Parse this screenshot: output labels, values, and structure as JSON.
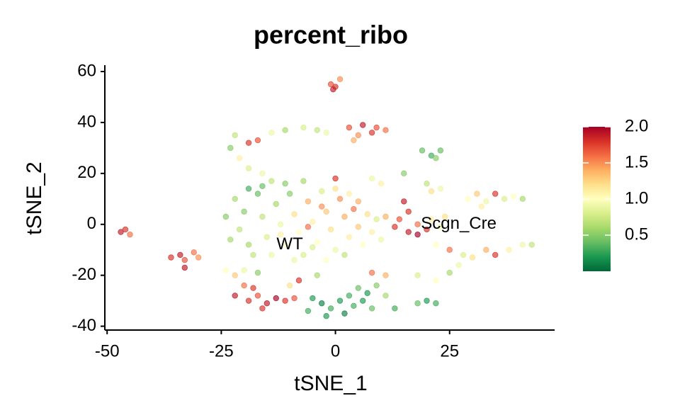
{
  "chart_data": {
    "type": "scatter",
    "title": "percent_ribo",
    "x_label": "tSNE_1",
    "y_label": "tSNE_2",
    "xlim": [
      -50.5,
      48
    ],
    "ylim": [
      -41.5,
      62.5
    ],
    "xticks": [
      -50,
      -25,
      0,
      25
    ],
    "yticks": [
      -40,
      -20,
      0,
      20,
      40,
      60
    ],
    "grid": false,
    "colormap": [
      "#006837",
      "#1a9850",
      "#66bd63",
      "#a6d96a",
      "#d9ef8b",
      "#ffffbf",
      "#fee08b",
      "#fdae61",
      "#f46d43",
      "#d73027",
      "#a50026"
    ],
    "clim": [
      0,
      2
    ],
    "cticks": [
      0.5,
      {
        "value": 1,
        "label": "1.0"
      },
      1.5,
      {
        "value": 2,
        "label": "2.0"
      }
    ],
    "annotations": [
      {
        "text": "WT",
        "x": -10,
        "y": -8
      },
      {
        "text": "Scgn_Cre",
        "x": 27,
        "y": 0
      }
    ],
    "x": [
      -22,
      -20,
      -21,
      -19,
      -17,
      -16,
      -15,
      -14,
      -13,
      -12,
      -11,
      -10,
      -9,
      -8,
      -7,
      -6,
      -5,
      -4,
      -3,
      -2,
      -1,
      0,
      1,
      2,
      3,
      4,
      5,
      6,
      7,
      8,
      9,
      10,
      -24,
      -23,
      -18,
      -11,
      -7,
      -3,
      -9,
      -16,
      -19,
      -14,
      -12,
      0,
      3,
      5,
      -2,
      2,
      -6,
      -5,
      -23,
      -22,
      -19,
      -17,
      -14,
      -11,
      -7,
      -4,
      -2,
      -21,
      -19,
      -16,
      -1,
      0,
      1,
      -0.5,
      3,
      5,
      6,
      8,
      9,
      4,
      11,
      0,
      8,
      10,
      19,
      21,
      23,
      22,
      15,
      20,
      21,
      23,
      -47,
      -46,
      -45,
      -36,
      -34,
      -33,
      -31,
      -30,
      -33,
      -24,
      -22,
      -20,
      -18,
      -22,
      -19,
      -17,
      -15,
      -13,
      -11,
      -9,
      -16,
      -10,
      -8,
      -5,
      -3,
      -1,
      1,
      3,
      5,
      7,
      9,
      -6,
      -2,
      2,
      4,
      6,
      8,
      11,
      13,
      8,
      11,
      -4,
      15,
      16,
      14,
      13,
      16,
      18,
      20,
      18,
      21,
      23,
      24,
      11,
      29,
      31,
      33,
      35,
      37,
      39,
      41,
      32,
      22,
      25,
      28,
      30,
      33,
      35,
      38,
      41,
      43,
      27,
      18,
      22,
      20,
      22,
      18,
      25,
      -20,
      -17
    ],
    "y": [
      10,
      5,
      -2,
      -8,
      12,
      3,
      -5,
      -12,
      8,
      0,
      -8,
      12,
      4,
      -3,
      -12,
      9,
      1,
      -7,
      13,
      5,
      -2,
      -10,
      10,
      3,
      -5,
      6,
      -1,
      -8,
      4,
      -3,
      2,
      -6,
      3,
      -6,
      -12,
      16,
      17,
      7,
      -14,
      15,
      14,
      17,
      -4,
      14,
      12,
      9,
      -14,
      -12,
      -1,
      -9,
      30,
      35,
      32,
      33,
      36,
      37,
      38,
      37,
      36,
      26,
      22,
      20,
      55,
      54,
      57,
      53,
      38,
      35,
      39,
      36,
      38,
      33,
      37,
      18,
      18,
      16,
      29,
      27,
      29,
      26,
      20,
      16,
      13,
      14,
      -3,
      -2,
      -4,
      -13,
      -12,
      -14,
      -11,
      -13,
      -17,
      -18,
      -20,
      -24,
      -25,
      -28,
      -30,
      -28,
      -31,
      -29,
      -30,
      -29,
      -33,
      -24,
      -22,
      -29,
      -31,
      -33,
      -30,
      -28,
      -25,
      -27,
      -24,
      -34,
      -36,
      -35,
      -32,
      -30,
      -33,
      -28,
      -33,
      -19,
      -20,
      -20,
      9,
      5,
      2,
      -1,
      -3,
      -4,
      -2,
      0,
      2,
      -1,
      3,
      3,
      10,
      12,
      9,
      12,
      10,
      11,
      10,
      7,
      -8,
      -10,
      -12,
      -13,
      -10,
      -12,
      -10,
      -8,
      -8,
      -16,
      -20,
      -22,
      -30,
      -31,
      -31,
      -19,
      -18,
      -19
    ],
    "values": [
      0.6,
      0.5,
      0.7,
      0.6,
      0.4,
      0.7,
      0.8,
      0.9,
      0.6,
      0.9,
      1.0,
      0.5,
      1.2,
      1.0,
      0.8,
      1.4,
      1.1,
      1.0,
      0.8,
      1.3,
      1.2,
      0.9,
      1.5,
      1.4,
      1.1,
      1.6,
      1.3,
      1.0,
      1.2,
      1.1,
      0.8,
      0.9,
      0.5,
      0.6,
      0.7,
      0.5,
      0.6,
      1.5,
      0.9,
      0.4,
      0.3,
      0.7,
      1.1,
      1.2,
      1.1,
      1.4,
      1.0,
      0.7,
      1.6,
      0.8,
      0.5,
      0.7,
      1.8,
      1.7,
      0.9,
      0.6,
      0.8,
      0.7,
      0.9,
      1.1,
      0.8,
      0.9,
      1.7,
      1.8,
      1.5,
      1.9,
      1.7,
      1.5,
      1.9,
      1.8,
      1.7,
      1.4,
      1.6,
      1.8,
      0.9,
      1.1,
      0.4,
      0.3,
      0.4,
      0.5,
      0.5,
      0.7,
      1.2,
      0.9,
      1.9,
      1.8,
      1.6,
      1.8,
      1.9,
      1.7,
      1.6,
      1.5,
      1.9,
      1.0,
      1.3,
      1.6,
      1.8,
      1.9,
      1.8,
      1.7,
      1.9,
      2.0,
      1.8,
      1.7,
      1.8,
      1.2,
      1.8,
      0.2,
      0.1,
      0.3,
      0.2,
      0.3,
      0.4,
      0.2,
      0.5,
      0.3,
      0.2,
      0.1,
      0.3,
      0.2,
      0.4,
      0.6,
      0.3,
      1.6,
      1.4,
      0.6,
      1.9,
      1.8,
      1.7,
      1.8,
      1.9,
      2.0,
      1.8,
      1.6,
      1.1,
      0.9,
      1.2,
      1.4,
      1.0,
      1.3,
      0.9,
      1.8,
      0.8,
      1.0,
      0.6,
      1.1,
      1.0,
      1.6,
      0.8,
      1.2,
      1.4,
      1.8,
      1.1,
      0.9,
      0.7,
      0.9,
      0.8,
      1.0,
      0.2,
      0.3,
      0.4,
      0.6,
      0.9,
      0.5
    ]
  }
}
